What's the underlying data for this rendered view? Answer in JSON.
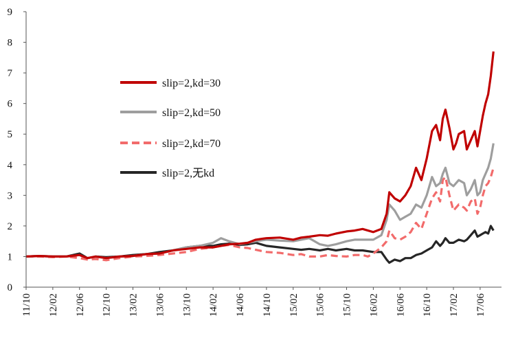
{
  "chart_data": {
    "type": "line",
    "title": "",
    "xlabel": "",
    "ylabel": "",
    "ylim": [
      0,
      9
    ],
    "y_ticks": [
      "0",
      "1",
      "2",
      "3",
      "4",
      "5",
      "6",
      "7",
      "8",
      "9"
    ],
    "x_ticks": [
      "11/10",
      "12/02",
      "12/06",
      "12/10",
      "13/02",
      "13/06",
      "13/10",
      "14/02",
      "14/06",
      "14/10",
      "15/02",
      "15/06",
      "15/10",
      "16/02",
      "16/06",
      "16/10",
      "17/02",
      "17/06"
    ],
    "x_range": [
      0,
      17.5
    ],
    "grid": false,
    "legend_position": "upper-left-middle",
    "series": [
      {
        "name": "slip=2,kd=30",
        "color": "#c00000",
        "dash": "solid",
        "points": [
          [
            0,
            1.0
          ],
          [
            0.5,
            1.02
          ],
          [
            1,
            1.0
          ],
          [
            1.5,
            1.0
          ],
          [
            2,
            1.05
          ],
          [
            2.3,
            0.95
          ],
          [
            2.6,
            1.0
          ],
          [
            3,
            0.95
          ],
          [
            3.5,
            1.0
          ],
          [
            4,
            1.02
          ],
          [
            4.5,
            1.08
          ],
          [
            5,
            1.1
          ],
          [
            5.5,
            1.2
          ],
          [
            6,
            1.25
          ],
          [
            6.5,
            1.3
          ],
          [
            7,
            1.3
          ],
          [
            7.3,
            1.35
          ],
          [
            7.6,
            1.4
          ],
          [
            8,
            1.42
          ],
          [
            8.3,
            1.45
          ],
          [
            8.6,
            1.55
          ],
          [
            9,
            1.6
          ],
          [
            9.5,
            1.62
          ],
          [
            10,
            1.55
          ],
          [
            10.3,
            1.62
          ],
          [
            10.6,
            1.65
          ],
          [
            11,
            1.7
          ],
          [
            11.3,
            1.68
          ],
          [
            11.6,
            1.75
          ],
          [
            12,
            1.82
          ],
          [
            12.3,
            1.85
          ],
          [
            12.6,
            1.9
          ],
          [
            13,
            1.8
          ],
          [
            13.3,
            1.9
          ],
          [
            13.5,
            2.4
          ],
          [
            13.6,
            3.1
          ],
          [
            13.8,
            2.9
          ],
          [
            14,
            2.8
          ],
          [
            14.2,
            3.0
          ],
          [
            14.4,
            3.3
          ],
          [
            14.6,
            3.9
          ],
          [
            14.7,
            3.7
          ],
          [
            14.8,
            3.5
          ],
          [
            15,
            4.2
          ],
          [
            15.2,
            5.1
          ],
          [
            15.35,
            5.3
          ],
          [
            15.5,
            4.8
          ],
          [
            15.6,
            5.5
          ],
          [
            15.7,
            5.8
          ],
          [
            15.85,
            5.2
          ],
          [
            16,
            4.5
          ],
          [
            16.1,
            4.7
          ],
          [
            16.2,
            5.0
          ],
          [
            16.4,
            5.1
          ],
          [
            16.5,
            4.5
          ],
          [
            16.65,
            4.8
          ],
          [
            16.8,
            5.1
          ],
          [
            16.9,
            4.6
          ],
          [
            17,
            5.1
          ],
          [
            17.1,
            5.6
          ],
          [
            17.2,
            6.0
          ],
          [
            17.3,
            6.3
          ],
          [
            17.4,
            6.9
          ],
          [
            17.5,
            7.7
          ]
        ]
      },
      {
        "name": "slip=2,kd=50",
        "color": "#9e9e9e",
        "dash": "solid",
        "points": [
          [
            0,
            1.0
          ],
          [
            0.5,
            1.02
          ],
          [
            1,
            1.0
          ],
          [
            1.5,
            1.0
          ],
          [
            2,
            1.05
          ],
          [
            2.3,
            0.95
          ],
          [
            2.6,
            1.0
          ],
          [
            3,
            0.95
          ],
          [
            3.5,
            1.0
          ],
          [
            4,
            1.02
          ],
          [
            4.5,
            1.08
          ],
          [
            5,
            1.1
          ],
          [
            5.5,
            1.2
          ],
          [
            6,
            1.3
          ],
          [
            6.5,
            1.35
          ],
          [
            7,
            1.45
          ],
          [
            7.3,
            1.6
          ],
          [
            7.6,
            1.5
          ],
          [
            8,
            1.4
          ],
          [
            8.3,
            1.45
          ],
          [
            8.6,
            1.5
          ],
          [
            9,
            1.55
          ],
          [
            9.5,
            1.52
          ],
          [
            10,
            1.5
          ],
          [
            10.3,
            1.55
          ],
          [
            10.6,
            1.6
          ],
          [
            11,
            1.4
          ],
          [
            11.3,
            1.35
          ],
          [
            11.6,
            1.4
          ],
          [
            12,
            1.5
          ],
          [
            12.3,
            1.55
          ],
          [
            12.6,
            1.55
          ],
          [
            13,
            1.55
          ],
          [
            13.3,
            1.7
          ],
          [
            13.5,
            2.2
          ],
          [
            13.6,
            2.7
          ],
          [
            13.8,
            2.5
          ],
          [
            14,
            2.2
          ],
          [
            14.2,
            2.3
          ],
          [
            14.4,
            2.4
          ],
          [
            14.6,
            2.7
          ],
          [
            14.8,
            2.6
          ],
          [
            15,
            3.0
          ],
          [
            15.2,
            3.6
          ],
          [
            15.35,
            3.3
          ],
          [
            15.5,
            3.4
          ],
          [
            15.6,
            3.7
          ],
          [
            15.7,
            3.9
          ],
          [
            15.85,
            3.4
          ],
          [
            16,
            3.3
          ],
          [
            16.2,
            3.5
          ],
          [
            16.4,
            3.4
          ],
          [
            16.5,
            3.0
          ],
          [
            16.65,
            3.2
          ],
          [
            16.8,
            3.5
          ],
          [
            16.9,
            3.0
          ],
          [
            17,
            3.1
          ],
          [
            17.1,
            3.5
          ],
          [
            17.2,
            3.7
          ],
          [
            17.3,
            3.9
          ],
          [
            17.4,
            4.2
          ],
          [
            17.5,
            4.7
          ]
        ]
      },
      {
        "name": "slip=2,kd=70",
        "color": "#f26b6b",
        "dash": "dashed",
        "points": [
          [
            0,
            1.0
          ],
          [
            0.5,
            1.0
          ],
          [
            1,
            0.98
          ],
          [
            1.5,
            1.0
          ],
          [
            2,
            0.95
          ],
          [
            2.3,
            0.9
          ],
          [
            2.6,
            0.92
          ],
          [
            3,
            0.88
          ],
          [
            3.5,
            0.95
          ],
          [
            4,
            1.0
          ],
          [
            4.5,
            1.02
          ],
          [
            5,
            1.05
          ],
          [
            5.5,
            1.1
          ],
          [
            6,
            1.15
          ],
          [
            6.5,
            1.25
          ],
          [
            7,
            1.3
          ],
          [
            7.3,
            1.35
          ],
          [
            7.6,
            1.38
          ],
          [
            8,
            1.3
          ],
          [
            8.3,
            1.28
          ],
          [
            8.6,
            1.22
          ],
          [
            9,
            1.15
          ],
          [
            9.5,
            1.12
          ],
          [
            10,
            1.05
          ],
          [
            10.3,
            1.08
          ],
          [
            10.6,
            1.0
          ],
          [
            11,
            1.0
          ],
          [
            11.3,
            1.05
          ],
          [
            11.6,
            1.02
          ],
          [
            12,
            1.0
          ],
          [
            12.3,
            1.05
          ],
          [
            12.6,
            1.05
          ],
          [
            12.8,
            1.0
          ],
          [
            13,
            1.1
          ],
          [
            13.3,
            1.3
          ],
          [
            13.5,
            1.5
          ],
          [
            13.6,
            1.85
          ],
          [
            13.8,
            1.6
          ],
          [
            14,
            1.55
          ],
          [
            14.2,
            1.65
          ],
          [
            14.4,
            1.8
          ],
          [
            14.6,
            2.1
          ],
          [
            14.8,
            1.9
          ],
          [
            15,
            2.4
          ],
          [
            15.2,
            2.9
          ],
          [
            15.35,
            3.1
          ],
          [
            15.5,
            2.8
          ],
          [
            15.6,
            3.5
          ],
          [
            15.7,
            3.6
          ],
          [
            15.85,
            3.0
          ],
          [
            16,
            2.5
          ],
          [
            16.2,
            2.7
          ],
          [
            16.4,
            2.6
          ],
          [
            16.5,
            2.5
          ],
          [
            16.65,
            2.8
          ],
          [
            16.8,
            2.9
          ],
          [
            16.9,
            2.4
          ],
          [
            17,
            2.6
          ],
          [
            17.1,
            3.0
          ],
          [
            17.2,
            3.3
          ],
          [
            17.3,
            3.4
          ],
          [
            17.4,
            3.6
          ],
          [
            17.5,
            3.9
          ]
        ]
      },
      {
        "name": "slip=2,无kd",
        "color": "#262626",
        "dash": "solid",
        "points": [
          [
            0,
            1.0
          ],
          [
            0.5,
            1.02
          ],
          [
            1,
            1.0
          ],
          [
            1.5,
            1.0
          ],
          [
            2,
            1.1
          ],
          [
            2.3,
            0.95
          ],
          [
            2.6,
            1.0
          ],
          [
            3,
            0.98
          ],
          [
            3.5,
            1.0
          ],
          [
            4,
            1.05
          ],
          [
            4.5,
            1.08
          ],
          [
            5,
            1.15
          ],
          [
            5.5,
            1.2
          ],
          [
            6,
            1.3
          ],
          [
            6.5,
            1.35
          ],
          [
            7,
            1.35
          ],
          [
            7.3,
            1.4
          ],
          [
            7.6,
            1.42
          ],
          [
            8,
            1.38
          ],
          [
            8.3,
            1.4
          ],
          [
            8.6,
            1.45
          ],
          [
            9,
            1.35
          ],
          [
            9.5,
            1.3
          ],
          [
            10,
            1.25
          ],
          [
            10.3,
            1.22
          ],
          [
            10.6,
            1.25
          ],
          [
            11,
            1.2
          ],
          [
            11.3,
            1.25
          ],
          [
            11.6,
            1.2
          ],
          [
            12,
            1.25
          ],
          [
            12.3,
            1.2
          ],
          [
            12.6,
            1.2
          ],
          [
            13,
            1.15
          ],
          [
            13.3,
            1.15
          ],
          [
            13.5,
            0.9
          ],
          [
            13.6,
            0.8
          ],
          [
            13.8,
            0.9
          ],
          [
            14,
            0.85
          ],
          [
            14.2,
            0.95
          ],
          [
            14.4,
            0.95
          ],
          [
            14.6,
            1.05
          ],
          [
            14.8,
            1.1
          ],
          [
            15,
            1.2
          ],
          [
            15.2,
            1.3
          ],
          [
            15.35,
            1.5
          ],
          [
            15.5,
            1.35
          ],
          [
            15.6,
            1.45
          ],
          [
            15.7,
            1.6
          ],
          [
            15.85,
            1.45
          ],
          [
            16,
            1.45
          ],
          [
            16.2,
            1.55
          ],
          [
            16.4,
            1.5
          ],
          [
            16.5,
            1.55
          ],
          [
            16.65,
            1.7
          ],
          [
            16.8,
            1.85
          ],
          [
            16.9,
            1.65
          ],
          [
            17,
            1.7
          ],
          [
            17.1,
            1.75
          ],
          [
            17.2,
            1.8
          ],
          [
            17.3,
            1.75
          ],
          [
            17.4,
            2.0
          ],
          [
            17.5,
            1.85
          ]
        ]
      }
    ]
  }
}
